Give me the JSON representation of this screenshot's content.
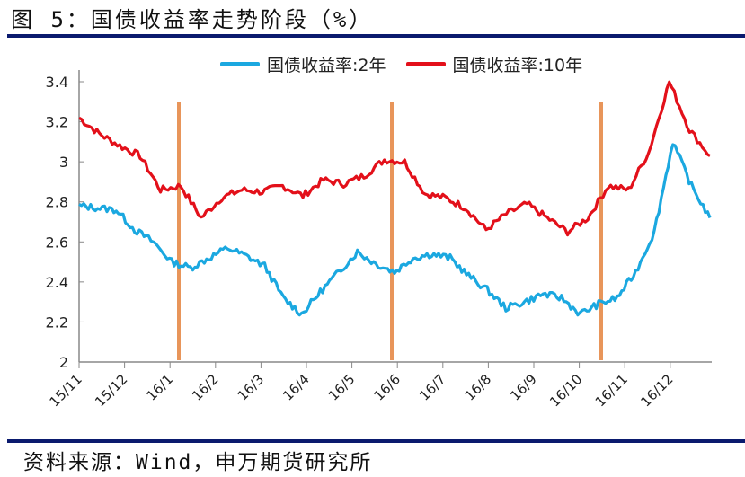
{
  "title": "图 5：国债收益率走势阶段（%）",
  "source": "资料来源：Wind，申万期货研究所",
  "colors": {
    "series_2y": "#1ba8e0",
    "series_10y": "#e3101a",
    "markers": "#e8955a",
    "rule": "#0a1a6e",
    "axis": "#888888"
  },
  "legend": [
    {
      "label": "国债收益率:2年",
      "color": "#1ba8e0"
    },
    {
      "label": "国债收益率:10年",
      "color": "#e3101a"
    }
  ],
  "chart_data": {
    "type": "line",
    "title": "国债收益率走势阶段（%）",
    "xlabel": "",
    "ylabel": "%",
    "ylim": [
      2,
      3.4
    ],
    "yticks": [
      "2",
      "2.2",
      "2.4",
      "2.6",
      "2.8",
      "3",
      "3.2",
      "3.4"
    ],
    "categories": [
      "15/11",
      "15/12",
      "16/1",
      "16/2",
      "16/3",
      "16/4",
      "16/5",
      "16/6",
      "16/7",
      "16/8",
      "16/9",
      "16/10",
      "16/11",
      "16/12"
    ],
    "grid": false,
    "legend_position": "top",
    "phase_markers": [
      "2016-01 (mid)",
      "2016-05 (end)",
      "2016-10 (late)"
    ],
    "series": [
      {
        "name": "国债收益率:2年",
        "x_pos": [
          0,
          0.03,
          0.06,
          0.09,
          0.12,
          0.15,
          0.18,
          0.21,
          0.24,
          0.27,
          0.3,
          0.33,
          0.36,
          0.39,
          0.42,
          0.45,
          0.48,
          0.51,
          0.54,
          0.57,
          0.6,
          0.63,
          0.66,
          0.69,
          0.72,
          0.75,
          0.78,
          0.81,
          0.84,
          0.87,
          0.9,
          0.93,
          0.96,
          0.99,
          1.02,
          1.05,
          1.08,
          1.11,
          1.14,
          1.17,
          1.2,
          1.23,
          1.26,
          1.29,
          1.32,
          1.35,
          1.38,
          1.41,
          1.44,
          1.47,
          1.5,
          1.53,
          1.56,
          1.59,
          1.62,
          1.65,
          1.68,
          1.71,
          1.74,
          1.77,
          1.8,
          1.83,
          1.86,
          1.89,
          1.92,
          1.95,
          1.98,
          2.01,
          2.04,
          2.07,
          2.1,
          2.13,
          2.16,
          2.19,
          2.22,
          2.25,
          2.28,
          2.31,
          2.34,
          2.37,
          2.4,
          2.43,
          2.46,
          2.49,
          2.52,
          2.55,
          2.58,
          2.61,
          2.64,
          2.67,
          2.7,
          2.73,
          2.76,
          2.79,
          2.82,
          2.85,
          2.88,
          2.91,
          2.94,
          2.97,
          3.0,
          3.03,
          3.06,
          3.09,
          3.12,
          3.15,
          3.18,
          3.21,
          3.24,
          3.27,
          3.3,
          3.33,
          3.36,
          3.39,
          3.42,
          3.45,
          3.48,
          3.51,
          3.54,
          3.57,
          3.6,
          3.63,
          3.66,
          3.69,
          3.72,
          3.75,
          3.78,
          3.81,
          3.84,
          3.87,
          3.9,
          3.93,
          3.96,
          3.99,
          4.02,
          4.05,
          4.08,
          4.11,
          4.14,
          4.17,
          4.2,
          4.23,
          4.26,
          4.29,
          4.32,
          4.35,
          4.38,
          4.41,
          4.44,
          4.47,
          4.5,
          4.53,
          4.56,
          4.59,
          4.62,
          4.65,
          4.68,
          4.71,
          4.74,
          4.77,
          4.8,
          4.83,
          4.86,
          4.89,
          4.92,
          4.95,
          4.98,
          5.01,
          5.04,
          5.07,
          5.1,
          5.13,
          5.16,
          5.19,
          5.22,
          5.25,
          5.28,
          5.31,
          5.34,
          5.37,
          5.4,
          5.43,
          5.46,
          5.49,
          5.52,
          5.55,
          5.58,
          5.61,
          5.64,
          5.67,
          5.7,
          5.73,
          5.76,
          5.79,
          5.82,
          5.85,
          5.88,
          5.91,
          5.94,
          5.97,
          6.0,
          6.03,
          6.06,
          6.09,
          6.12,
          6.15,
          6.18,
          6.21,
          6.24,
          6.27,
          6.3,
          6.33,
          6.36,
          6.39,
          6.42,
          6.45,
          6.48,
          6.51,
          6.54,
          6.57,
          6.6,
          6.63,
          6.66,
          6.69,
          6.72,
          6.75,
          6.78,
          6.81,
          6.84,
          6.87,
          6.9,
          6.93,
          6.96,
          6.99,
          7.02,
          7.05,
          7.08,
          7.11,
          7.14,
          7.17,
          7.2,
          7.23,
          7.26,
          7.29,
          7.32,
          7.35,
          7.38,
          7.41,
          7.44,
          7.47,
          7.5,
          7.53,
          7.56,
          7.59,
          7.62,
          7.65,
          7.68,
          7.71,
          7.74,
          7.77,
          7.8,
          7.83,
          7.86,
          7.89,
          7.92,
          7.95,
          7.98,
          8.01,
          8.04,
          8.07,
          8.1,
          8.13,
          8.16,
          8.19,
          8.22,
          8.25,
          8.28,
          8.31,
          8.34,
          8.37,
          8.4,
          8.43,
          8.46,
          8.49,
          8.52,
          8.55,
          8.58,
          8.61,
          8.64,
          8.67,
          8.7,
          8.73,
          8.76,
          8.79,
          8.82,
          8.85,
          8.88,
          8.91,
          8.94,
          8.97,
          9.0,
          9.03,
          9.06,
          9.09,
          9.12,
          9.15,
          9.18,
          9.21,
          9.24,
          9.27,
          9.3,
          9.33,
          9.36,
          9.39,
          9.42,
          9.45,
          9.48,
          9.51,
          9.54,
          9.57,
          9.6,
          9.63,
          9.66,
          9.69,
          9.72,
          9.75,
          9.78,
          9.81,
          9.84,
          9.87,
          9.9,
          9.93,
          9.96,
          9.99,
          10.02,
          10.05,
          10.08,
          10.11,
          10.14,
          10.17,
          10.2,
          10.23,
          10.26,
          10.29,
          10.32,
          10.35,
          10.38,
          10.41,
          10.44,
          10.47,
          10.5,
          10.53,
          10.56,
          10.59,
          10.62,
          10.65,
          10.68,
          10.71,
          10.74,
          10.77,
          10.8,
          10.83,
          10.86,
          10.89,
          10.92,
          10.95,
          10.98,
          11.01,
          11.04,
          11.07,
          11.1,
          11.13,
          11.16,
          11.19,
          11.22,
          11.25,
          11.28,
          11.31,
          11.34,
          11.37,
          11.4,
          11.43,
          11.46,
          11.49,
          11.52,
          11.55,
          11.58,
          11.61,
          11.64,
          11.67,
          11.7,
          11.73,
          11.76,
          11.79,
          11.82,
          11.85,
          11.88,
          11.91,
          11.94,
          11.97,
          12.0,
          12.03,
          12.06,
          12.09,
          12.12,
          12.15,
          12.18,
          12.21,
          12.24,
          12.27,
          12.3,
          12.33,
          12.36,
          12.39,
          12.42,
          12.45,
          12.48,
          12.51,
          12.54,
          12.57,
          12.6,
          12.63,
          12.66,
          12.69,
          12.72,
          12.75,
          12.78,
          12.81,
          12.84,
          12.87,
          12.9
        ],
        "values": []
      },
      {
        "name": "国债收益率:10年",
        "values": []
      }
    ],
    "key_points_2y": [
      {
        "x": "15/11",
        "y": 2.78
      },
      {
        "x": "15/11 end",
        "y": 2.77
      },
      {
        "x": "15/12 start",
        "y": 2.76
      },
      {
        "x": "15/12 mid",
        "y": 2.66
      },
      {
        "x": "15/12 end",
        "y": 2.6
      },
      {
        "x": "16/1 early",
        "y": 2.5
      },
      {
        "x": "16/1 mid",
        "y": 2.47
      },
      {
        "x": "16/1 late",
        "y": 2.52
      },
      {
        "x": "16/2 early",
        "y": 2.57
      },
      {
        "x": "16/2 mid",
        "y": 2.53
      },
      {
        "x": "16/3 start",
        "y": 2.48
      },
      {
        "x": "16/3 mid",
        "y": 2.32
      },
      {
        "x": "16/3 end",
        "y": 2.24
      },
      {
        "x": "16/4 mid",
        "y": 2.35
      },
      {
        "x": "16/4 end",
        "y": 2.45
      },
      {
        "x": "16/5 early",
        "y": 2.55
      },
      {
        "x": "16/5 mid",
        "y": 2.49
      },
      {
        "x": "16/5 end",
        "y": 2.45
      },
      {
        "x": "16/6 start",
        "y": 2.52
      },
      {
        "x": "16/6 mid",
        "y": 2.54
      },
      {
        "x": "16/7 start",
        "y": 2.52
      },
      {
        "x": "16/7 mid",
        "y": 2.43
      },
      {
        "x": "16/7 end",
        "y": 2.36
      },
      {
        "x": "16/8 mid",
        "y": 2.27
      },
      {
        "x": "16/8 end",
        "y": 2.3
      },
      {
        "x": "16/9 mid",
        "y": 2.34
      },
      {
        "x": "16/10 start",
        "y": 2.32
      },
      {
        "x": "16/10 end",
        "y": 2.24
      },
      {
        "x": "16/11 start",
        "y": 2.29
      },
      {
        "x": "16/11 mid",
        "y": 2.32
      },
      {
        "x": "16/11 end",
        "y": 2.45
      },
      {
        "x": "16/12 start",
        "y": 2.65
      },
      {
        "x": "16/12 mid",
        "y": 3.1
      },
      {
        "x": "16/12 late",
        "y": 2.88
      },
      {
        "x": "16/12 end",
        "y": 2.72
      }
    ],
    "key_points_10y": [
      {
        "x": "15/11",
        "y": 3.22
      },
      {
        "x": "15/11 mid",
        "y": 3.14
      },
      {
        "x": "15/12 start",
        "y": 3.08
      },
      {
        "x": "15/12 mid",
        "y": 3.03
      },
      {
        "x": "15/12 end",
        "y": 2.86
      },
      {
        "x": "16/1 early",
        "y": 2.88
      },
      {
        "x": "16/1 mid",
        "y": 2.72
      },
      {
        "x": "16/1 late",
        "y": 2.82
      },
      {
        "x": "16/2 start",
        "y": 2.86
      },
      {
        "x": "16/2 end",
        "y": 2.85
      },
      {
        "x": "16/3 start",
        "y": 2.88
      },
      {
        "x": "16/3 end",
        "y": 2.83
      },
      {
        "x": "16/4 mid",
        "y": 2.91
      },
      {
        "x": "16/4 end",
        "y": 2.89
      },
      {
        "x": "16/5 mid",
        "y": 2.93
      },
      {
        "x": "16/5 end",
        "y": 3.01
      },
      {
        "x": "16/6 start",
        "y": 3.0
      },
      {
        "x": "16/6 end",
        "y": 2.84
      },
      {
        "x": "16/7 mid",
        "y": 2.82
      },
      {
        "x": "16/7 end",
        "y": 2.77
      },
      {
        "x": "16/8 start",
        "y": 2.66
      },
      {
        "x": "16/8 end",
        "y": 2.74
      },
      {
        "x": "16/9 mid",
        "y": 2.79
      },
      {
        "x": "16/10 start",
        "y": 2.72
      },
      {
        "x": "16/10 end",
        "y": 2.65
      },
      {
        "x": "16/11 start",
        "y": 2.72
      },
      {
        "x": "16/11 mid",
        "y": 2.88
      },
      {
        "x": "16/11 end",
        "y": 2.86
      },
      {
        "x": "16/12 start",
        "y": 3.05
      },
      {
        "x": "16/12 mid",
        "y": 3.4
      },
      {
        "x": "16/12 late",
        "y": 3.16
      },
      {
        "x": "16/12 end",
        "y": 3.03
      }
    ]
  }
}
